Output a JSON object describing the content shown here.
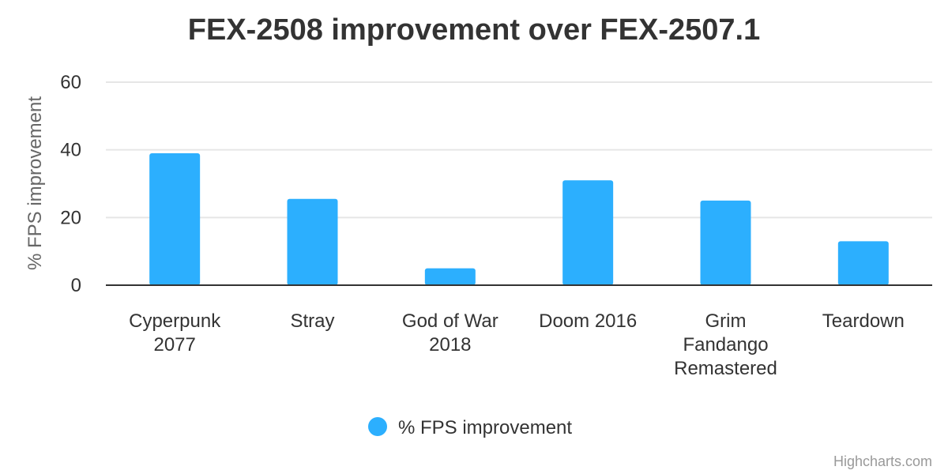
{
  "chart_data": {
    "type": "bar",
    "title": "FEX-2508 improvement over FEX-2507.1",
    "ylabel": "% FPS improvement",
    "xlabel": "",
    "ylim": [
      0,
      60
    ],
    "yticks": [
      "0",
      "20",
      "40",
      "60"
    ],
    "grid": true,
    "legend_position": "bottom-center",
    "categories": [
      [
        "Cyperpunk",
        "2077"
      ],
      [
        "Stray"
      ],
      [
        "God of War",
        "2018"
      ],
      [
        "Doom 2016"
      ],
      [
        "Grim",
        "Fandango",
        "Remastered"
      ],
      [
        "Teardown"
      ]
    ],
    "series": [
      {
        "name": "% FPS improvement",
        "color": "#2caffe",
        "values": [
          39,
          25.5,
          5,
          31,
          25,
          13
        ]
      }
    ]
  },
  "credits": "Highcharts.com"
}
